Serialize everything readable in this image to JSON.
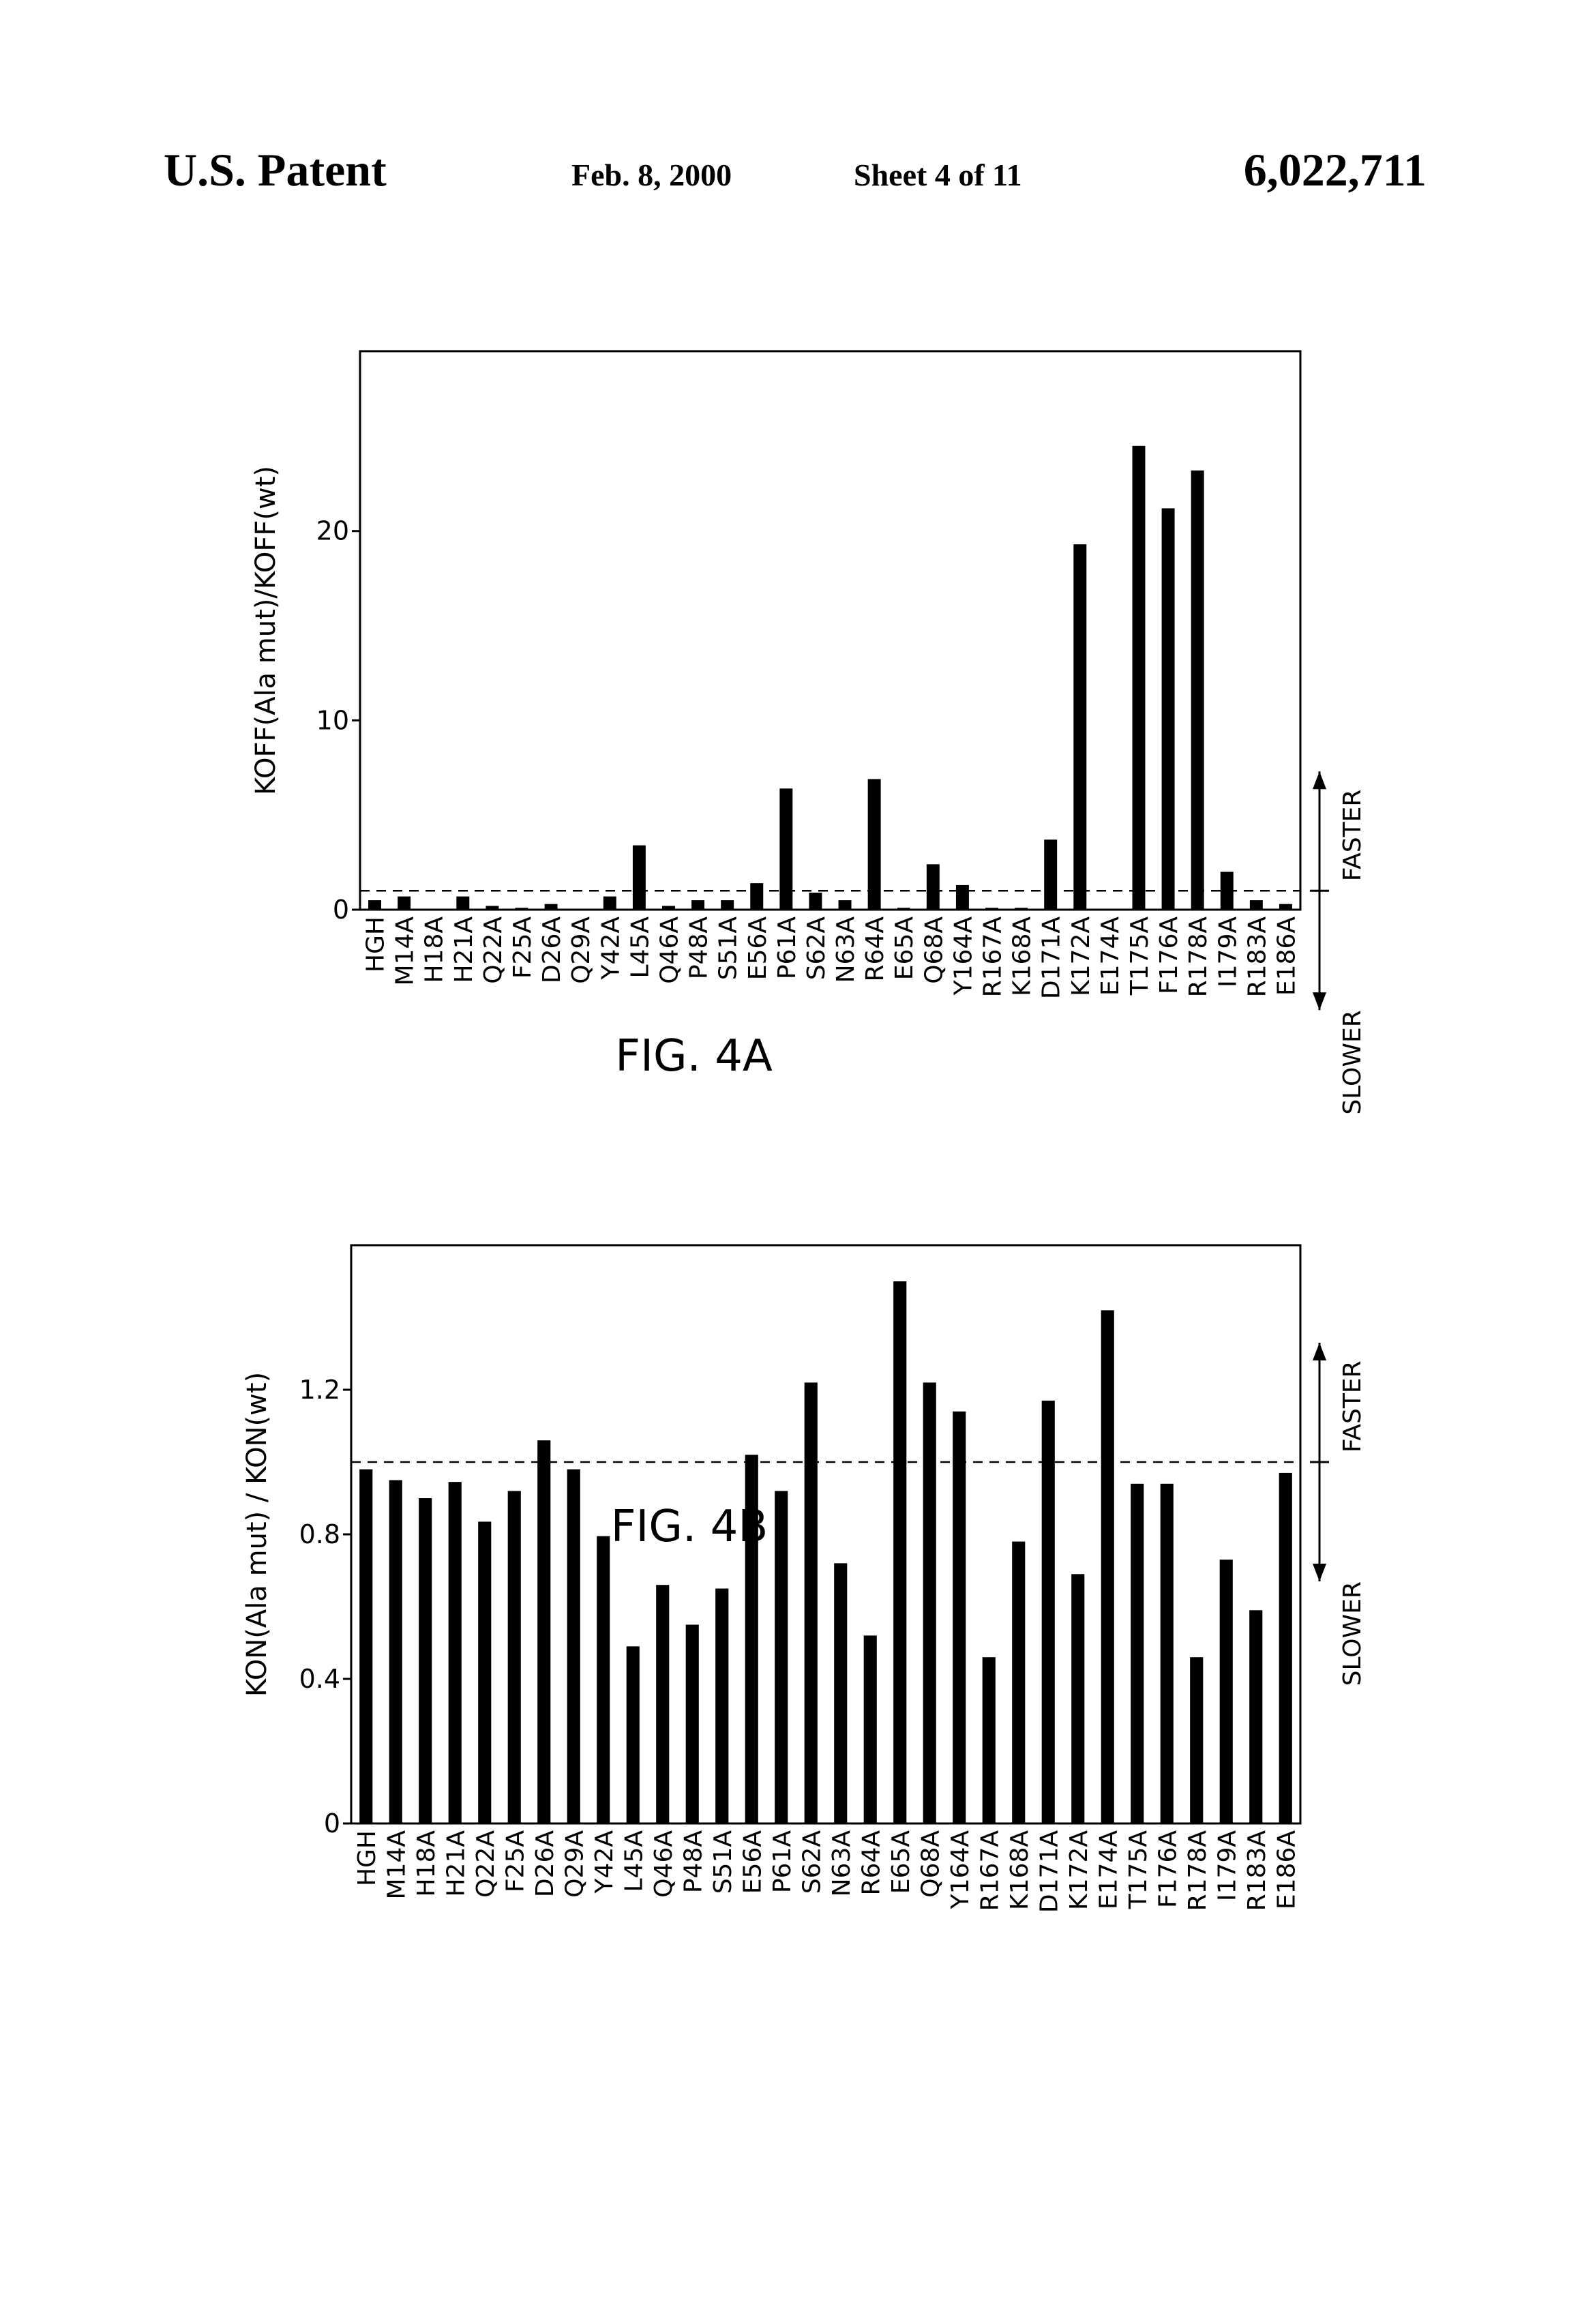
{
  "header": {
    "left": "U.S. Patent",
    "date": "Feb. 8, 2000",
    "sheet": "Sheet 4 of 11",
    "number": "6,022,711"
  },
  "chart_data": [
    {
      "type": "bar",
      "caption": "FIG. 4A",
      "y_label": "KOFF(Ala mut)/KOFF(wt)",
      "upper_note": "FASTER",
      "lower_note": "SLOWER",
      "color": "#000000",
      "categories": [
        "HGH",
        "M14A",
        "H18A",
        "H21A",
        "Q22A",
        "F25A",
        "D26A",
        "Q29A",
        "Y42A",
        "L45A",
        "Q46A",
        "P48A",
        "S51A",
        "E56A",
        "P61A",
        "S62A",
        "N63A",
        "R64A",
        "E65A",
        "Q68A",
        "Y164A",
        "R167A",
        "K168A",
        "D171A",
        "K172A",
        "E174A",
        "T175A",
        "F176A",
        "R178A",
        "I179A",
        "R183A",
        "E186A"
      ],
      "values": [
        0.5,
        0.7,
        0,
        0.7,
        0.2,
        0.1,
        0.3,
        0,
        0.7,
        3.4,
        0.2,
        0.5,
        0.5,
        1.4,
        6.4,
        0.9,
        0.5,
        6.9,
        0.1,
        2.4,
        1.3,
        0.1,
        0.1,
        3.7,
        19.3,
        0,
        24.5,
        21.2,
        23.2,
        2.0,
        0.5,
        0.3
      ],
      "reference_line": 1,
      "ylim": [
        0,
        29.5
      ],
      "yticks": [
        0,
        10,
        20
      ]
    },
    {
      "type": "bar",
      "caption": "FIG. 4B",
      "y_label": "KON(Ala mut) / KON(wt)",
      "upper_note": "FASTER",
      "lower_note": "SLOWER",
      "color": "#000000",
      "categories": [
        "HGH",
        "M14A",
        "H18A",
        "H21A",
        "Q22A",
        "F25A",
        "D26A",
        "Q29A",
        "Y42A",
        "L45A",
        "Q46A",
        "P48A",
        "S51A",
        "E56A",
        "P61A",
        "S62A",
        "N63A",
        "R64A",
        "E65A",
        "Q68A",
        "Y164A",
        "R167A",
        "K168A",
        "D171A",
        "K172A",
        "E174A",
        "T175A",
        "F176A",
        "R178A",
        "I179A",
        "R183A",
        "E186A"
      ],
      "values": [
        0.98,
        0.95,
        0.9,
        0.945,
        0.835,
        0.92,
        1.06,
        0.98,
        0.795,
        0.49,
        0.66,
        0.55,
        0.65,
        1.02,
        0.92,
        1.22,
        0.72,
        0.52,
        1.5,
        1.22,
        1.14,
        0.46,
        0.78,
        1.17,
        0.69,
        1.42,
        0.94,
        0.94,
        0.46,
        0.73,
        0.59,
        0.97
      ],
      "reference_line": 1,
      "ylim": [
        0,
        1.6
      ],
      "yticks": [
        0,
        0.4,
        0.8,
        1.2
      ]
    }
  ]
}
